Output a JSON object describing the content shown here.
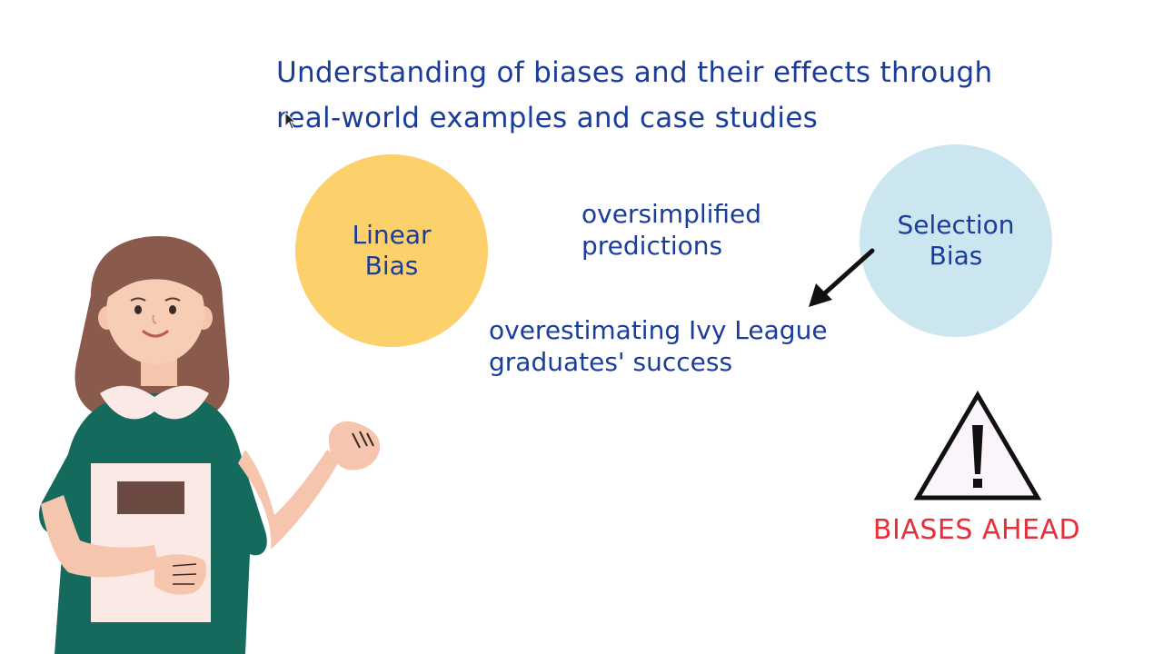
{
  "title": {
    "line1": "Understanding of biases and their effects through",
    "line2": "real-world examples and case studies"
  },
  "linear_bias": {
    "label": "Linear Bias",
    "color": "#fcd06a"
  },
  "selection_bias": {
    "label": "Selection Bias",
    "color": "#cce6f0"
  },
  "notes": {
    "oversimplified": {
      "line1": "oversimplified",
      "line2": "predictions"
    },
    "ivy": {
      "line1": "overestimating Ivy League",
      "line2": "graduates' success"
    }
  },
  "warning": {
    "text": "BIASES AHEAD",
    "color": "#e5303a"
  },
  "colors": {
    "text_blue": "#1a3d9c",
    "dress_green": "#156a5e",
    "hair_brown": "#8a5a4c",
    "skin": "#f6c5ad"
  },
  "icons": {
    "cursor": "mouse-pointer-icon",
    "arrow": "arrow-down-left-icon",
    "warning": "warning-triangle-icon",
    "person": "presenter-woman-illustration"
  }
}
